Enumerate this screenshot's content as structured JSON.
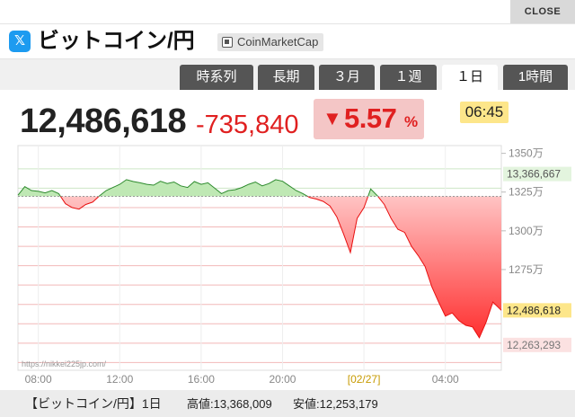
{
  "window": {
    "close_label": "CLOSE"
  },
  "header": {
    "share_icon": "x-twitter-icon",
    "share_glyph": "𝕏",
    "title": "ビットコイン/円",
    "source_label": "CoinMarketCap"
  },
  "tabs": [
    {
      "label": "時系列",
      "active": false
    },
    {
      "label": "長期",
      "active": false
    },
    {
      "label": "３月",
      "active": false
    },
    {
      "label": "１週",
      "active": false
    },
    {
      "label": "１日",
      "active": true
    },
    {
      "label": "1時間",
      "active": false
    }
  ],
  "quote": {
    "price": "12,486,618",
    "change": "-735,840",
    "change_arrow": "▼",
    "change_pct": "5.57",
    "pct_sign": "%",
    "time": "06:45"
  },
  "colors": {
    "up_fill": "#bfe8b4",
    "up_line": "#2e8b2e",
    "down_fill": "#ff4444",
    "down_line": "#e81010",
    "accent_red": "#e02020",
    "badge_yellow": "#fde68a"
  },
  "chart_data": {
    "type": "area",
    "x_ticks": [
      "08:00",
      "12:00",
      "16:00",
      "20:00",
      "[02/27]",
      "04:00"
    ],
    "y_ticks": [
      "1350万",
      "1325万",
      "1300万",
      "1275万"
    ],
    "reference_labels": [
      "13,366,667",
      "12,263,293"
    ],
    "current_label": "12,486,618",
    "watermark": "https://nikkei225jp.com/",
    "baseline": 13222458,
    "ylim": [
      12100000,
      13550000
    ],
    "x": [
      "07:00",
      "07:20",
      "07:40",
      "08:00",
      "08:20",
      "08:40",
      "09:00",
      "09:20",
      "09:40",
      "10:00",
      "10:20",
      "10:40",
      "11:00",
      "11:20",
      "11:40",
      "12:00",
      "12:20",
      "12:40",
      "13:00",
      "13:20",
      "13:40",
      "14:00",
      "14:20",
      "14:40",
      "15:00",
      "15:20",
      "15:40",
      "16:00",
      "16:20",
      "16:40",
      "17:00",
      "17:20",
      "17:40",
      "18:00",
      "18:20",
      "18:40",
      "19:00",
      "19:20",
      "19:40",
      "20:00",
      "20:20",
      "20:40",
      "21:00",
      "21:20",
      "21:40",
      "22:00",
      "22:20",
      "22:40",
      "23:00",
      "23:20",
      "23:40",
      "00:00",
      "00:20",
      "00:40",
      "01:00",
      "01:20",
      "01:40",
      "02:00",
      "02:20",
      "02:40",
      "03:00",
      "03:20",
      "03:40",
      "04:00",
      "04:20",
      "04:40",
      "05:00",
      "05:20",
      "05:40",
      "06:00",
      "06:20",
      "06:45"
    ],
    "values": [
      13230000,
      13285000,
      13260000,
      13255000,
      13245000,
      13260000,
      13240000,
      13175000,
      13150000,
      13140000,
      13170000,
      13185000,
      13225000,
      13260000,
      13280000,
      13300000,
      13330000,
      13318000,
      13310000,
      13300000,
      13295000,
      13320000,
      13305000,
      13315000,
      13290000,
      13280000,
      13318000,
      13300000,
      13310000,
      13275000,
      13240000,
      13260000,
      13265000,
      13280000,
      13300000,
      13315000,
      13290000,
      13305000,
      13330000,
      13320000,
      13290000,
      13260000,
      13240000,
      13215000,
      13205000,
      13190000,
      13160000,
      13090000,
      12980000,
      12860000,
      13080000,
      13150000,
      13270000,
      13225000,
      13170000,
      13080000,
      13010000,
      12990000,
      12900000,
      12840000,
      12770000,
      12640000,
      12540000,
      12450000,
      12470000,
      12420000,
      12390000,
      12380000,
      12310000,
      12410000,
      12540000,
      12486618
    ]
  },
  "footer": {
    "title": "【ビットコイン/円】1日",
    "high": "高値:13,368,009",
    "low": "安値:12,253,179"
  }
}
